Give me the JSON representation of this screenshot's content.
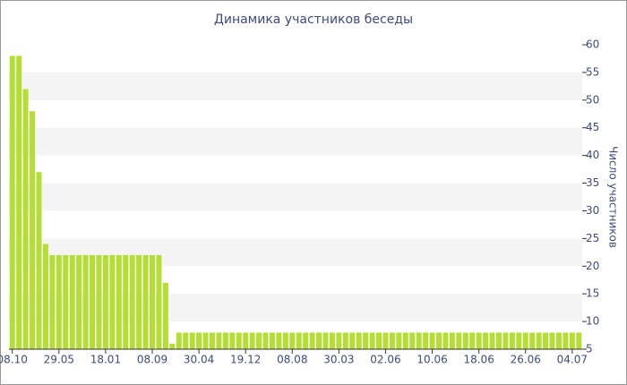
{
  "chart_data": {
    "type": "bar",
    "title": "Динамика участников беседы",
    "y_label": "Число участников",
    "categories": [
      "08.10",
      null,
      null,
      null,
      null,
      null,
      null,
      "29.05",
      null,
      null,
      null,
      null,
      null,
      null,
      "18.01",
      null,
      null,
      null,
      null,
      null,
      null,
      "08.09",
      null,
      null,
      null,
      null,
      null,
      null,
      "30.04",
      null,
      null,
      null,
      null,
      null,
      null,
      "19.12",
      null,
      null,
      null,
      null,
      null,
      null,
      "08.08",
      null,
      null,
      null,
      null,
      null,
      null,
      "30.03",
      null,
      null,
      null,
      null,
      null,
      null,
      "02.06",
      null,
      null,
      null,
      null,
      null,
      null,
      "10.06",
      null,
      null,
      null,
      null,
      null,
      null,
      "18.06",
      null,
      null,
      null,
      null,
      null,
      null,
      "26.06",
      null,
      null,
      null,
      null,
      null,
      null,
      "04.07",
      null
    ],
    "values": [
      58,
      58,
      52,
      48,
      37,
      24,
      22,
      22,
      22,
      22,
      22,
      22,
      22,
      22,
      22,
      22,
      22,
      22,
      22,
      22,
      22,
      22,
      22,
      17,
      6,
      8,
      8,
      8,
      8,
      8,
      8,
      8,
      8,
      8,
      8,
      8,
      8,
      8,
      8,
      8,
      8,
      8,
      8,
      8,
      8,
      8,
      8,
      8,
      8,
      8,
      8,
      8,
      8,
      8,
      8,
      8,
      8,
      8,
      8,
      8,
      8,
      8,
      8,
      8,
      8,
      8,
      8,
      8,
      8,
      8,
      8,
      8,
      8,
      8,
      8,
      8,
      8,
      8,
      8,
      8,
      8,
      8,
      8,
      8,
      8,
      8
    ],
    "color": "#b4de33",
    "ylim": [
      5,
      60
    ],
    "yticks": [
      5,
      10,
      15,
      20,
      25,
      30,
      35,
      40,
      45,
      50,
      55,
      60
    ],
    "grid": true,
    "y_axis_side": "right"
  }
}
